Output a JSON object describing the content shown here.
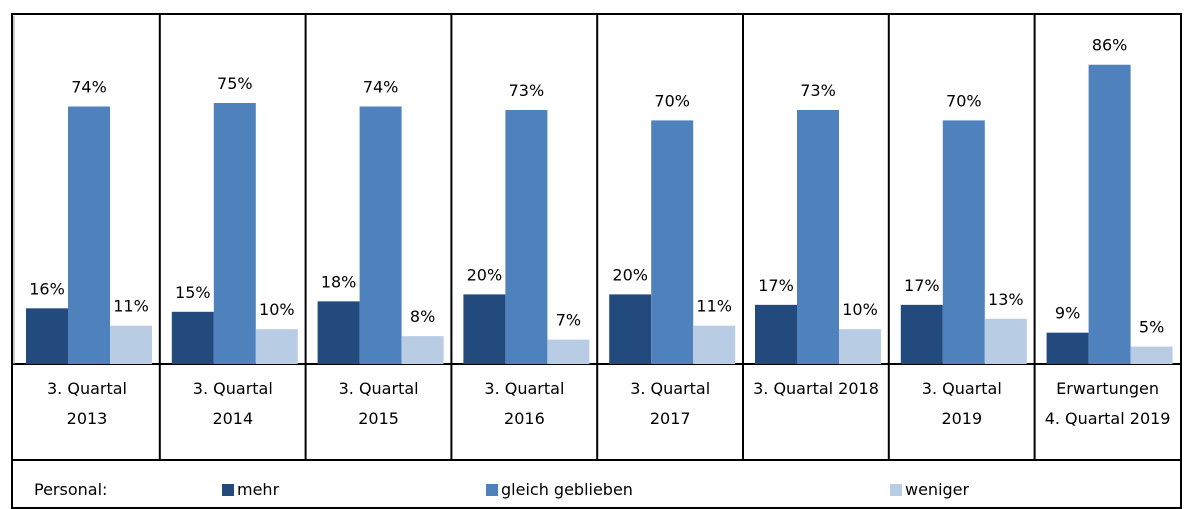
{
  "chart_data": {
    "type": "bar",
    "categories": [
      "3. Quartal\n2013",
      "3. Quartal\n2014",
      "3. Quartal\n2015",
      "3. Quartal\n2016",
      "3. Quartal\n2017",
      "3. Quartal 2018",
      "3. Quartal\n2019",
      "Erwartungen\n4. Quartal 2019"
    ],
    "legend_title": "Personal:",
    "series": [
      {
        "name": "mehr",
        "color": "#234a7d",
        "values": [
          16,
          15,
          18,
          20,
          20,
          17,
          17,
          9
        ],
        "value_labels": [
          "16%",
          "15%",
          "18%",
          "20%",
          "20%",
          "17%",
          "17%",
          "9%"
        ]
      },
      {
        "name": "gleich geblieben",
        "color": "#4f81bd",
        "values": [
          74,
          75,
          74,
          73,
          70,
          73,
          70,
          86
        ],
        "value_labels": [
          "74%",
          "75%",
          "74%",
          "73%",
          "70%",
          "73%",
          "70%",
          "86%"
        ]
      },
      {
        "name": "weniger",
        "color": "#b8cce4",
        "values": [
          11,
          10,
          8,
          7,
          11,
          10,
          13,
          5
        ],
        "value_labels": [
          "11%",
          "10%",
          "8%",
          "7%",
          "11%",
          "10%",
          "13%",
          "5%"
        ]
      }
    ],
    "ylim": [
      0,
      100
    ]
  }
}
